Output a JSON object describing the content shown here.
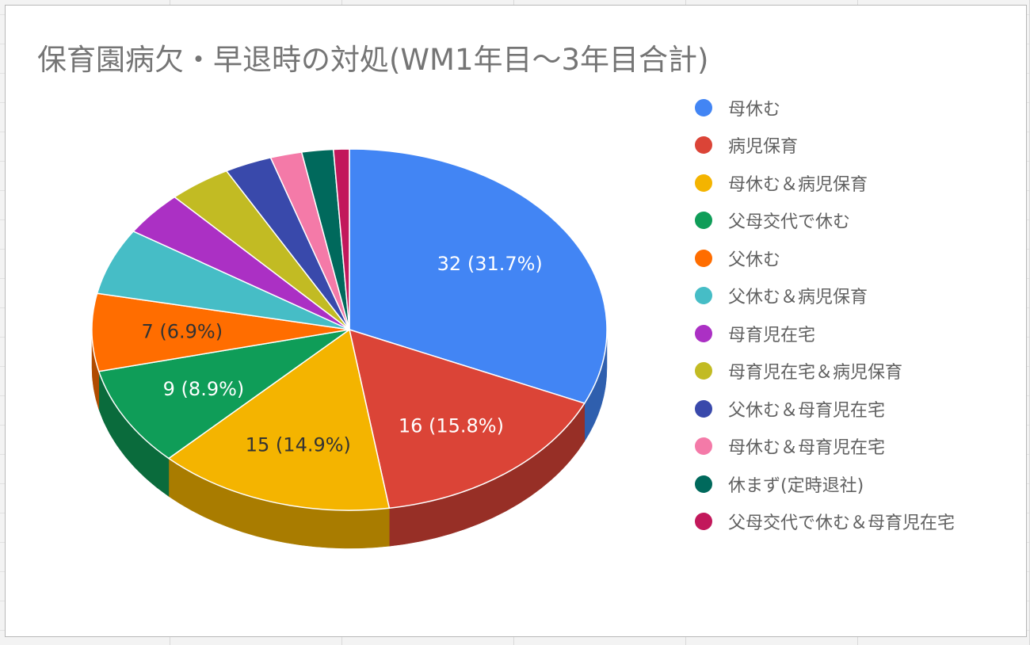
{
  "chart_data": {
    "type": "pie",
    "title": "保育園病欠・早退時の対処(WM1年目〜3年目合計)",
    "legend_position": "right",
    "slices": [
      {
        "label": "母休む",
        "value": 32,
        "data_label": "32 (31.7%)",
        "color": "#4285f4",
        "side_color": "#2f5fae",
        "label_color": "#ffffff"
      },
      {
        "label": "病児保育",
        "value": 16,
        "data_label": "16 (15.8%)",
        "color": "#db4437",
        "side_color": "#972f26",
        "label_color": "#ffffff"
      },
      {
        "label": "母休む＆病児保育",
        "value": 15,
        "data_label": "15 (14.9%)",
        "color": "#f4b400",
        "side_color": "#a97c00",
        "label_color": "#333333"
      },
      {
        "label": "父母交代で休む",
        "value": 9,
        "data_label": "9 (8.9%)",
        "color": "#0f9d58",
        "side_color": "#0a6b3c",
        "label_color": "#ffffff"
      },
      {
        "label": "父休む",
        "value": 7,
        "data_label": "7 (6.9%)",
        "color": "#ff6d00",
        "side_color": "#b04b00",
        "label_color": "#333333"
      },
      {
        "label": "父休む＆病児保育",
        "value": 6,
        "data_label": "",
        "color": "#46bdc6",
        "side_color": "#308289",
        "label_color": "#333333"
      },
      {
        "label": "母育児在宅",
        "value": 4,
        "data_label": "",
        "color": "#ab30c4",
        "side_color": "#762186",
        "label_color": "#ffffff"
      },
      {
        "label": "母育児在宅＆病児保育",
        "value": 4,
        "data_label": "",
        "color": "#c2bb23",
        "side_color": "#868118",
        "label_color": "#333333"
      },
      {
        "label": "父休む＆母育児在宅",
        "value": 3,
        "data_label": "",
        "color": "#3949ab",
        "side_color": "#263276",
        "label_color": "#ffffff"
      },
      {
        "label": "母休む＆母育児在宅",
        "value": 2,
        "data_label": "",
        "color": "#f47aa8",
        "side_color": "#a85474",
        "label_color": "#333333"
      },
      {
        "label": "休まず(定時退社)",
        "value": 2,
        "data_label": "",
        "color": "#00695c",
        "side_color": "#00483f",
        "label_color": "#ffffff"
      },
      {
        "label": "父母交代で休む＆母育児在宅",
        "value": 1,
        "data_label": "",
        "color": "#c2185b",
        "side_color": "#86103e",
        "label_color": "#ffffff"
      }
    ]
  }
}
